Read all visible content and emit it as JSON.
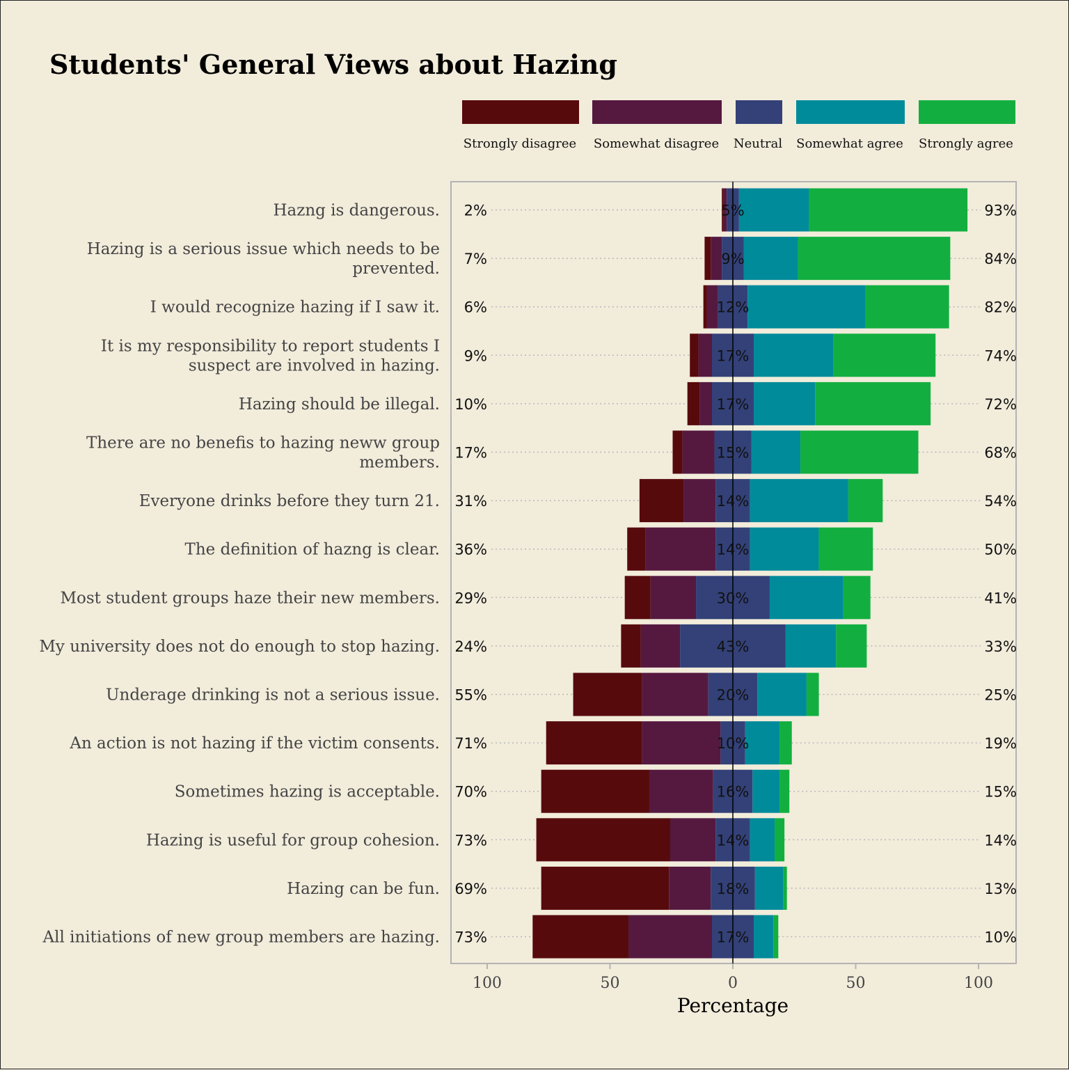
{
  "chart_data": {
    "type": "bar",
    "layout": "diverging-stacked",
    "title": "Students' General Views about Hazing",
    "xlabel": "Percentage",
    "ylabel": "",
    "xlim": [
      -100,
      100
    ],
    "xticks": [
      -100,
      -50,
      0,
      50,
      100
    ],
    "xtick_labels": [
      "100",
      "50",
      "0",
      "50",
      "100"
    ],
    "legend_placement": "top-right",
    "grid": false,
    "colors": {
      "Strongly disagree": "#570a0c",
      "Somewhat disagree": "#551940",
      "Neutral": "#334178",
      "Somewhat agree": "#008b9b",
      "Strongly agree": "#12af40"
    },
    "levels": [
      "Strongly disagree",
      "Somewhat disagree",
      "Neutral",
      "Somewhat agree",
      "Strongly agree"
    ],
    "categories": [
      "Hazng is dangerous.",
      "Hazing is a serious issue which needs to be prevented.",
      "I would recognize hazing if I saw it.",
      "It is my responsibility to report students I suspect are involved in hazing.",
      "Hazing should be illegal.",
      "There are no benefis to hazing neww group members.",
      "Everyone drinks before they turn 21.",
      "The definition of hazng is clear.",
      "Most student groups haze their new members.",
      "My university does not do enough to stop hazing.",
      "Underage drinking is not a serious issue.",
      "An action is not hazing if the victim consents.",
      "Sometimes hazing is acceptable.",
      "Hazing is useful for group cohesion.",
      "Hazing can be fun.",
      "All initiations of new group members are hazing."
    ],
    "category_lines": [
      [
        "Hazng is dangerous."
      ],
      [
        "Hazing is a serious issue which needs to be",
        "prevented."
      ],
      [
        "I would recognize hazing if I saw it."
      ],
      [
        "It is my responsibility to report students I",
        "suspect are involved in hazing."
      ],
      [
        "Hazing should be illegal."
      ],
      [
        "There are no benefis to hazing neww group",
        "members."
      ],
      [
        "Everyone drinks before they turn 21."
      ],
      [
        "The definition of hazng is clear."
      ],
      [
        "Most student groups haze their new members."
      ],
      [
        "My university does not do enough to stop hazing."
      ],
      [
        "Underage drinking is not a serious issue."
      ],
      [
        "An action is not hazing if the victim consents."
      ],
      [
        "Sometimes hazing is acceptable."
      ],
      [
        "Hazing is useful for group cohesion."
      ],
      [
        "Hazing can be fun."
      ],
      [
        "All initiations of new group members are hazing."
      ]
    ],
    "series": [
      {
        "name": "Strongly disagree",
        "values": [
          0.5,
          2.5,
          1.5,
          3.5,
          5,
          4,
          18,
          7.5,
          10.5,
          8,
          28,
          39,
          44,
          54.5,
          52,
          39
        ]
      },
      {
        "name": "Somewhat disagree",
        "values": [
          1.5,
          4.5,
          4.5,
          5.5,
          5,
          13,
          13,
          28.5,
          18.5,
          16,
          27,
          32,
          26,
          18.5,
          17,
          34
        ]
      },
      {
        "name": "Neutral",
        "values": [
          5,
          9,
          12,
          17,
          17,
          15,
          14,
          14,
          30,
          43,
          20,
          10,
          16,
          14,
          18,
          17
        ]
      },
      {
        "name": "Somewhat agree",
        "values": [
          28.5,
          22,
          48,
          32.5,
          25,
          20,
          40,
          28,
          30,
          20.5,
          20,
          14,
          11,
          10,
          11.5,
          8
        ]
      },
      {
        "name": "Strongly agree",
        "values": [
          64.5,
          62,
          34,
          41.5,
          47,
          48,
          14,
          22,
          11,
          12.5,
          5,
          5,
          4,
          4,
          1.5,
          2
        ]
      }
    ],
    "left_totals": [
      "2%",
      "7%",
      "6%",
      "9%",
      "10%",
      "17%",
      "31%",
      "36%",
      "29%",
      "24%",
      "55%",
      "71%",
      "70%",
      "73%",
      "69%",
      "73%"
    ],
    "neutral_labels": [
      "5%",
      "9%",
      "12%",
      "17%",
      "17%",
      "15%",
      "14%",
      "14%",
      "30%",
      "43%",
      "20%",
      "10%",
      "16%",
      "14%",
      "18%",
      "17%"
    ],
    "right_totals": [
      "93%",
      "84%",
      "82%",
      "74%",
      "72%",
      "68%",
      "54%",
      "50%",
      "41%",
      "33%",
      "25%",
      "19%",
      "15%",
      "14%",
      "13%",
      "10%"
    ]
  }
}
